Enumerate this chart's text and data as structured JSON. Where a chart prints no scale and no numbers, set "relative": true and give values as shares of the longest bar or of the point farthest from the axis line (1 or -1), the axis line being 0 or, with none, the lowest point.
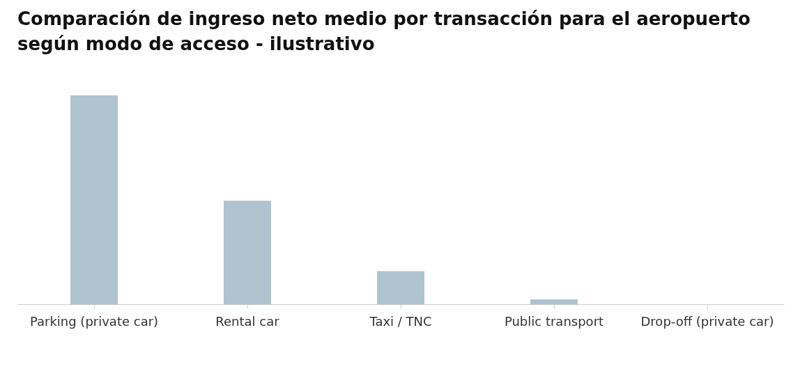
{
  "chart_data": {
    "type": "bar",
    "title": "Comparación de ingreso neto medio por transacción para el aeropuerto según modo de acceso - ilustrativo",
    "categories": [
      "Parking (private car)",
      "Rental car",
      "Taxi / TNC",
      "Public transport",
      "Drop-off (private car)"
    ],
    "values": [
      1,
      0.496,
      0.158,
      0.023,
      0
    ],
    "color": "#b0c4d0",
    "relative": true,
    "grid": false
  }
}
